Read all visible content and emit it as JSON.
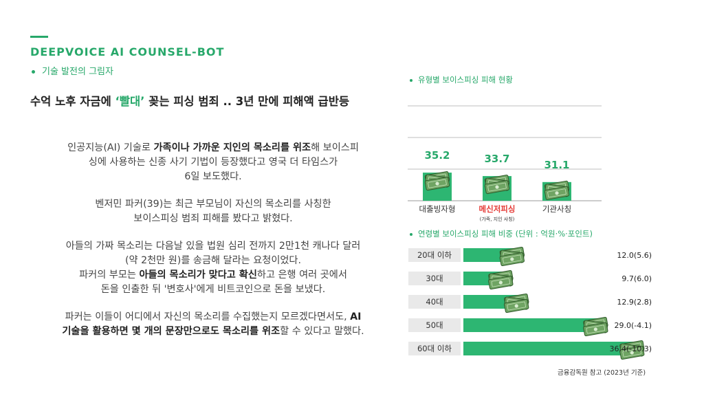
{
  "brand": "DEEPVOICE AI COUNSEL-BOT",
  "subtitle": "기술 발전의 그림자",
  "headline": {
    "part1": "수억 노후 자금에 ",
    "highlight": "‘빨대’",
    "part2": " 꽂는 피싱 범죄 .. 3년 만에 피해액 급반등"
  },
  "paragraphs": [
    [
      {
        "t": "인공지능(AI) 기술로 "
      },
      {
        "t": "가족이나 가까운 지인의 목소리를 위조",
        "b": true
      },
      {
        "t": "해 보이스피"
      },
      {
        "br": true
      },
      {
        "t": "싱에 사용하는 신종 사기 기법이 등장했다고 영국 더 타임스가"
      },
      {
        "br": true
      },
      {
        "t": "6일 보도했다."
      }
    ],
    [
      {
        "t": "벤저민 파커(39)는 최근 부모님이 자신의 목소리를  사칭한"
      },
      {
        "br": true
      },
      {
        "t": "보이스피싱 범죄 피해를 봤다고 밝혔다."
      }
    ],
    [
      {
        "t": "아들의 가짜 목소리는 다음날 있을 법원 심리 전까지 2만1천 캐나다 달러"
      },
      {
        "br": true
      },
      {
        "t": "(약 2천만 원)를 송금해 달라는 요청이었다."
      },
      {
        "br": true
      },
      {
        "t": "파커의 부모는 "
      },
      {
        "t": "아들의 목소리가 맞다고 확신",
        "b": true
      },
      {
        "t": "하고 은행 여러 곳에서"
      },
      {
        "br": true
      },
      {
        "t": "돈을 인출한 뒤 '변호사'에게 비트코인으로 돈을 보냈다."
      }
    ],
    [
      {
        "t": "파커는 이들이 어디에서 자신의 목소리를 수집했는지 모르겠다면서도, "
      },
      {
        "t": "AI",
        "b": true
      },
      {
        "br": true
      },
      {
        "t": "기술을 활용하면 몇 개의 문장만으로도 목소리를 위조",
        "b": true
      },
      {
        "t": "할 수 있다고 말했다."
      }
    ]
  ],
  "colors": {
    "accent": "#27a86a",
    "bar": "#2db672",
    "highlight_red": "#e53935"
  },
  "source": "금융감독원 참고 (2023년 기준)",
  "chart_data": [
    {
      "type": "bar",
      "title": "유형별 보이스피싱 피해 현황",
      "categories": [
        "대출빙자형",
        "메신저피싱",
        "기관사칭"
      ],
      "category_sublabels": [
        "",
        "(가족, 지인 사칭)",
        ""
      ],
      "highlighted_category": "메신저피싱",
      "values": [
        35.2,
        33.7,
        31.1
      ],
      "value_labels": [
        "35.2",
        "33.7",
        "31.1"
      ],
      "grid": true,
      "icon": "money-stack-icon"
    },
    {
      "type": "bar",
      "orientation": "horizontal",
      "title": "연령별 보이스피싱 피해 비중 (단위 : 억원·%·포인트)",
      "categories": [
        "20대 이하",
        "30대",
        "40대",
        "50대",
        "60대 이하"
      ],
      "values": [
        12.0,
        9.7,
        12.9,
        29.0,
        36.4
      ],
      "changes": [
        5.6,
        6.0,
        2.8,
        -4.1,
        -10.3
      ],
      "value_labels": [
        "12.0(5.6)",
        "9.7(6.0)",
        "12.9(2.8)",
        "29.0(-4.1)",
        "36.4(-10.3)"
      ],
      "icon": "money-stack-icon"
    }
  ]
}
